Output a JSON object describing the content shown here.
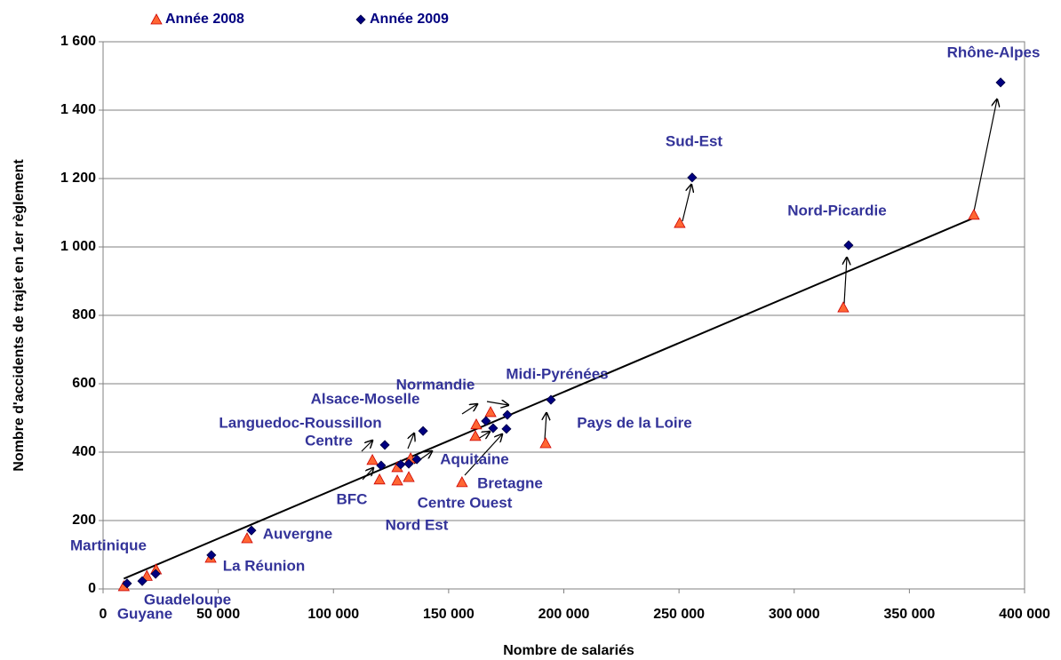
{
  "chart_data": {
    "type": "scatter",
    "xlabel": "Nombre de salariés",
    "ylabel": "Nombre d'accidents de trajet en 1er règlement",
    "xlim": [
      0,
      400000
    ],
    "ylim": [
      0,
      1600
    ],
    "xticks": [
      0,
      {
        "value": 50000,
        "label": "50 000"
      },
      {
        "value": 100000,
        "label": "100 000"
      },
      {
        "value": 150000,
        "label": "150 000"
      },
      {
        "value": 200000,
        "label": "200 000"
      },
      {
        "value": 250000,
        "label": "250 000"
      },
      {
        "value": 300000,
        "label": "300 000"
      },
      {
        "value": 350000,
        "label": "350 000"
      },
      {
        "value": 400000,
        "label": "400 000"
      }
    ],
    "yticks": [
      0,
      200,
      400,
      600,
      800,
      {
        "value": 1000,
        "label": "1 000"
      },
      {
        "value": 1200,
        "label": "1 200"
      },
      {
        "value": 1400,
        "label": "1 400"
      },
      {
        "value": 1600,
        "label": "1 600"
      }
    ],
    "grid": true,
    "legend": "top",
    "series": [
      {
        "name": "Année 2008",
        "color": "#ff6633",
        "marker": "triangle",
        "x": [
          9000,
          19000,
          23000,
          46700,
          62500,
          116900,
          120000,
          127700,
          132700,
          127700,
          133500,
          155800,
          161600,
          162000,
          168200,
          192100,
          250300,
          321300,
          378000
        ],
        "values": [
          8,
          38,
          57,
          91,
          148,
          377,
          320,
          317,
          327,
          356,
          382,
          312,
          447,
          481,
          517,
          426,
          1070,
          823,
          1094
        ]
      },
      {
        "name": "Année 2009",
        "color": "#000080",
        "marker": "diamond",
        "x": [
          10400,
          17000,
          22800,
          47000,
          64400,
          120700,
          122300,
          129200,
          132700,
          136200,
          138900,
          166200,
          169300,
          175500,
          175100,
          194400,
          255700,
          323600,
          389600
        ],
        "values": [
          16,
          23,
          44,
          99,
          171,
          361,
          421,
          364,
          366,
          379,
          462,
          491,
          470,
          509,
          468,
          553,
          1203,
          1005,
          1481
        ]
      }
    ],
    "trendline": {
      "x": [
        9000,
        378000
      ],
      "values": [
        30,
        1085
      ]
    },
    "annotations": [
      "Rhône-Alpes",
      "Sud-Est",
      "Nord-Picardie",
      "Midi-Pyrénées",
      "Normandie",
      "Alsace-Moselle",
      "Languedoc-Roussillon",
      "Centre",
      "Pays de la Loire",
      "Aquitaine",
      "Bretagne",
      "Centre Ouest",
      "BFC",
      "Nord Est",
      "Auvergne",
      "Martinique",
      "La Réunion",
      "Guadeloupe",
      "Guyane"
    ]
  }
}
